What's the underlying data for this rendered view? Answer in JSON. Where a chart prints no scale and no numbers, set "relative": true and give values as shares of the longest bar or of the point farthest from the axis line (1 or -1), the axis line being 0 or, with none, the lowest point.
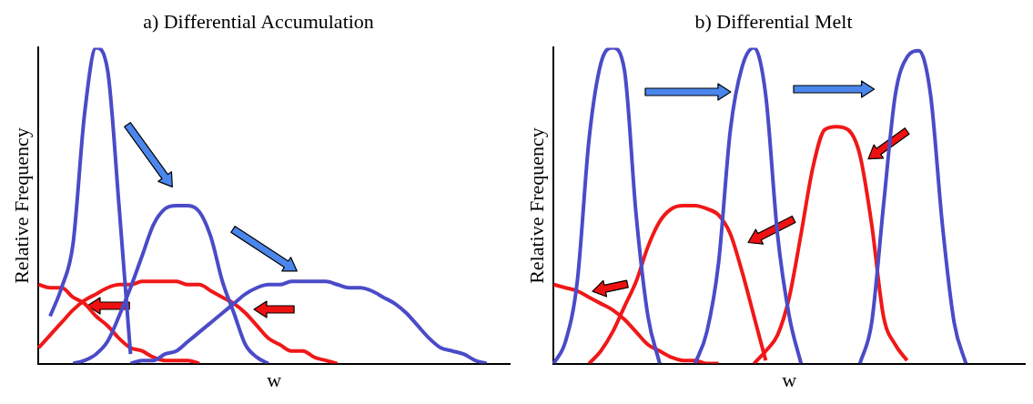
{
  "chart_data": [
    {
      "type": "line",
      "title": "a) Differential Accumulation",
      "xlabel": "w",
      "ylabel": "Relative Frequency",
      "relative": true,
      "tick_labels": false,
      "marker": "none",
      "categories": [
        null,
        null,
        null,
        null,
        null,
        null,
        null,
        null,
        null,
        null,
        null,
        null,
        null,
        null,
        null,
        null,
        null,
        null,
        null,
        null,
        null,
        null,
        null,
        null,
        null,
        null,
        null,
        null,
        null,
        null,
        null,
        null,
        null,
        null,
        null,
        null,
        null,
        null,
        null,
        null,
        null,
        null
      ],
      "series": [
        {
          "color": "#4b4bc8",
          "values": [
            null,
            0.15,
            0.24,
            0.38,
            0.79,
            1.0,
            0.93,
            0.5,
            0.03,
            null,
            null,
            null,
            null,
            null,
            null,
            null,
            null,
            null,
            null,
            null,
            null,
            null,
            null,
            null,
            null,
            null,
            null,
            null,
            null,
            null,
            null,
            null,
            null,
            null,
            null,
            null,
            null,
            null,
            null,
            null,
            null,
            null
          ]
        },
        {
          "color": "#4b4bc8",
          "values": [
            null,
            null,
            null,
            0,
            0.01,
            0.03,
            0.07,
            0.15,
            0.24,
            0.34,
            0.44,
            0.49,
            0.5,
            0.5,
            0.48,
            0.4,
            0.26,
            0.16,
            0.06,
            0.02,
            0,
            null,
            null,
            null,
            null,
            null,
            null,
            null,
            null,
            null,
            null,
            null,
            null,
            null,
            null,
            null,
            null,
            null,
            null,
            null,
            null,
            null
          ]
        },
        {
          "color": "#4b4bc8",
          "values": [
            null,
            null,
            null,
            null,
            null,
            null,
            null,
            null,
            0,
            0.01,
            0.01,
            0.03,
            0.04,
            0.07,
            0.1,
            0.13,
            0.16,
            0.19,
            0.22,
            0.24,
            0.25,
            0.25,
            0.26,
            0.26,
            0.26,
            0.26,
            0.25,
            0.24,
            0.24,
            0.23,
            0.21,
            0.19,
            0.16,
            0.12,
            0.08,
            0.05,
            0.04,
            0.03,
            0.01,
            0,
            null,
            null
          ]
        },
        {
          "color": "#f01818",
          "values": [
            0.05,
            0.09,
            0.13,
            0.17,
            0.2,
            0.22,
            0.24,
            0.25,
            0.25,
            0.26,
            0.26,
            0.26,
            0.26,
            0.25,
            0.25,
            0.23,
            0.21,
            0.19,
            0.16,
            0.12,
            0.08,
            0.06,
            0.04,
            0.04,
            0.02,
            0.01,
            0,
            null,
            null,
            null,
            null,
            null,
            null,
            null,
            null,
            null,
            null,
            null,
            null,
            null,
            null,
            null
          ]
        },
        {
          "color": "#f01818",
          "values": [
            0.25,
            0.24,
            0.24,
            0.21,
            0.19,
            0.15,
            0.12,
            0.08,
            0.05,
            0.04,
            0.02,
            0.01,
            0.01,
            0.01,
            0,
            null,
            null,
            null,
            null,
            null,
            null,
            null,
            null,
            null,
            null,
            null,
            null,
            null,
            null,
            null,
            null,
            null,
            null,
            null,
            null,
            null,
            null,
            null,
            null,
            null,
            null,
            null
          ]
        }
      ]
    },
    {
      "type": "line",
      "title": "b) Differential Melt",
      "xlabel": "w",
      "ylabel": "Relative Frequency",
      "relative": true,
      "tick_labels": false,
      "marker": "none",
      "categories": [
        null,
        null,
        null,
        null,
        null,
        null,
        null,
        null,
        null,
        null,
        null,
        null,
        null,
        null,
        null,
        null,
        null,
        null,
        null,
        null,
        null,
        null,
        null,
        null,
        null,
        null,
        null,
        null,
        null,
        null,
        null,
        null,
        null,
        null,
        null,
        null,
        null,
        null,
        null,
        null,
        null
      ],
      "series": [
        {
          "color": "#4b4bc8",
          "values": [
            0,
            0.07,
            0.26,
            0.71,
            0.95,
            1.0,
            0.93,
            0.47,
            0.15,
            0,
            null,
            null,
            null,
            null,
            null,
            null,
            null,
            null,
            null,
            null,
            null,
            null,
            null,
            null,
            null,
            null,
            null,
            null,
            null,
            null,
            null,
            null,
            null,
            null,
            null,
            null,
            null,
            null,
            null,
            null,
            null
          ]
        },
        {
          "color": "#4b4bc8",
          "values": [
            null,
            null,
            null,
            null,
            null,
            null,
            null,
            null,
            null,
            null,
            null,
            null,
            0,
            0.1,
            0.32,
            0.74,
            0.94,
            1.0,
            0.85,
            0.41,
            0.15,
            0,
            null,
            null,
            null,
            null,
            null,
            null,
            null,
            null,
            null,
            null,
            null,
            null,
            null,
            null,
            null,
            null,
            null,
            null,
            null
          ]
        },
        {
          "color": "#4b4bc8",
          "values": [
            null,
            null,
            null,
            null,
            null,
            null,
            null,
            null,
            null,
            null,
            null,
            null,
            null,
            null,
            null,
            null,
            null,
            null,
            null,
            null,
            null,
            null,
            null,
            null,
            null,
            null,
            0,
            0.13,
            0.5,
            0.85,
            0.97,
            0.99,
            0.85,
            0.44,
            0.13,
            0,
            null,
            null,
            null,
            null,
            null
          ]
        },
        {
          "color": "#f01818",
          "values": [
            0.25,
            0.24,
            0.23,
            0.21,
            0.19,
            0.17,
            0.14,
            0.1,
            0.06,
            0.04,
            0.02,
            0.01,
            0.01,
            0,
            0,
            null,
            null,
            null,
            null,
            null,
            null,
            null,
            null,
            null,
            null,
            null,
            null,
            null,
            null,
            null,
            null,
            null,
            null,
            null,
            null,
            null,
            null,
            null,
            null,
            null,
            null
          ]
        },
        {
          "color": "#f01818",
          "values": [
            null,
            null,
            null,
            0,
            0.04,
            0.1,
            0.18,
            0.26,
            0.37,
            0.45,
            0.49,
            0.5,
            0.5,
            0.49,
            0.47,
            0.41,
            0.29,
            0.15,
            0.01,
            null,
            null,
            null,
            null,
            null,
            null,
            null,
            null,
            null,
            null,
            null,
            null,
            null,
            null,
            null,
            null,
            null,
            null,
            null,
            null,
            null,
            null
          ]
        },
        {
          "color": "#f01818",
          "values": [
            null,
            null,
            null,
            null,
            null,
            null,
            null,
            null,
            null,
            null,
            null,
            null,
            null,
            null,
            null,
            null,
            null,
            0,
            0.04,
            0.09,
            0.21,
            0.41,
            0.62,
            0.74,
            0.75,
            0.74,
            0.66,
            0.44,
            0.15,
            0.06,
            0.01,
            null,
            null,
            null,
            null,
            null,
            null,
            null,
            null,
            null,
            null
          ]
        }
      ]
    }
  ]
}
